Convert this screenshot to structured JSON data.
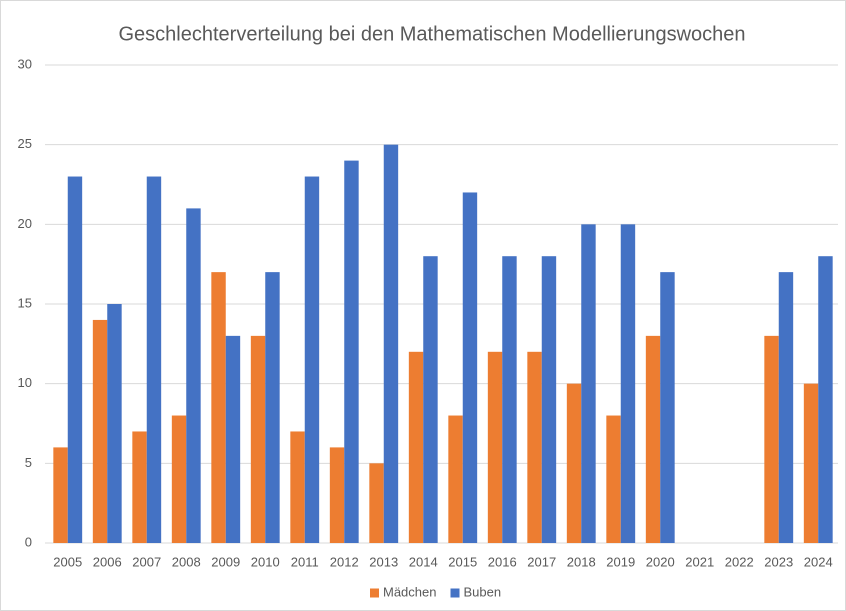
{
  "chart_data": {
    "type": "bar",
    "title": "Geschlechterverteilung  bei den Mathematischen Modellierungswochen",
    "categories": [
      "2005",
      "2006",
      "2007",
      "2008",
      "2009",
      "2010",
      "2011",
      "2012",
      "2013",
      "2014",
      "2015",
      "2016",
      "2017",
      "2018",
      "2019",
      "2020",
      "2021",
      "2022",
      "2023",
      "2024"
    ],
    "series": [
      {
        "name": "Mädchen",
        "color": "#ed7d31",
        "values": [
          6,
          14,
          7,
          8,
          17,
          13,
          7,
          6,
          5,
          12,
          8,
          12,
          12,
          10,
          8,
          13,
          null,
          null,
          13,
          10
        ]
      },
      {
        "name": "Buben",
        "color": "#4472c4",
        "values": [
          23,
          15,
          23,
          21,
          13,
          17,
          23,
          24,
          25,
          18,
          22,
          18,
          18,
          20,
          20,
          17,
          null,
          null,
          17,
          18
        ]
      }
    ],
    "ylim": [
      0,
      30
    ],
    "yticks": [
      0,
      5,
      10,
      15,
      20,
      25,
      30
    ],
    "grid": true,
    "legend": "bottom"
  }
}
